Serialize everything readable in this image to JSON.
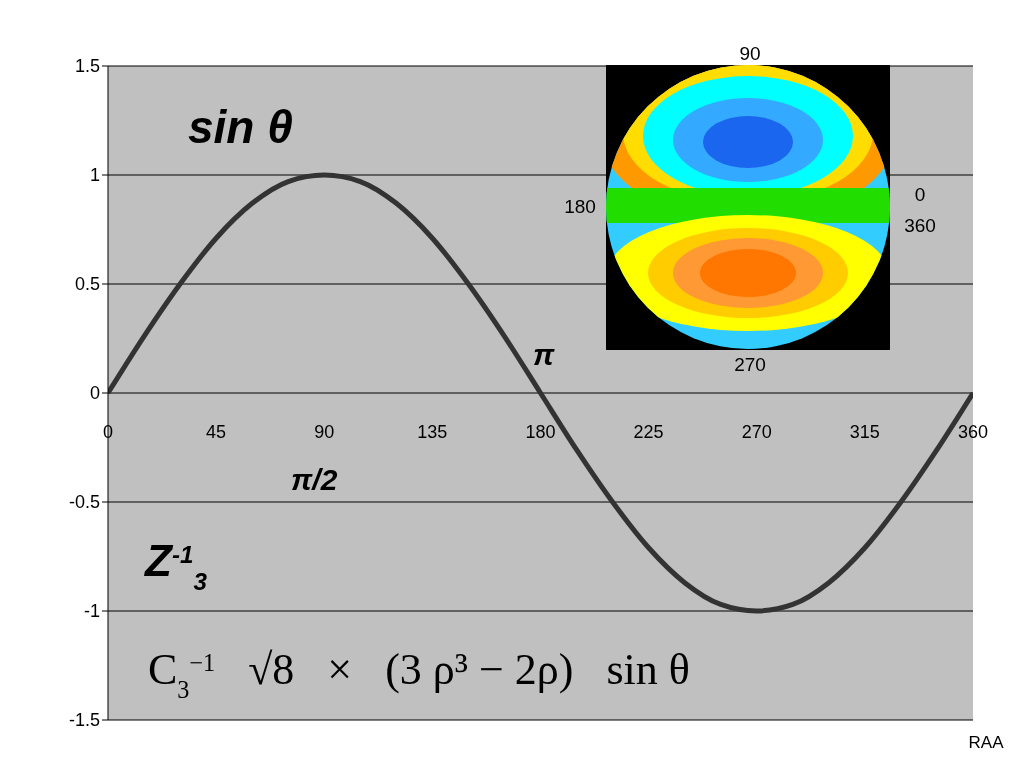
{
  "chart_data": {
    "type": "line",
    "x": [
      0,
      15,
      30,
      45,
      60,
      75,
      90,
      105,
      120,
      135,
      150,
      165,
      180,
      195,
      210,
      225,
      240,
      255,
      270,
      285,
      300,
      315,
      330,
      345,
      360
    ],
    "values": [
      0,
      0.26,
      0.5,
      0.71,
      0.87,
      0.97,
      1,
      0.97,
      0.87,
      0.71,
      0.5,
      0.26,
      0,
      -0.26,
      -0.5,
      -0.71,
      -0.87,
      -0.97,
      -1,
      -0.97,
      -0.87,
      -0.71,
      -0.5,
      -0.26,
      0
    ],
    "color": "#333333",
    "line_style": "solid",
    "marker": "none",
    "xlim": [
      0,
      360
    ],
    "xticks": [
      0,
      45,
      90,
      135,
      180,
      225,
      270,
      315,
      360
    ],
    "ylim": [
      -1.5,
      1.5
    ],
    "yticks": [
      -1.5,
      -1,
      -0.5,
      0,
      0.5,
      1,
      1.5
    ],
    "grid": "y",
    "annotations": [
      "sin θ",
      "π",
      "π/2",
      "Z$^{-1}$$_{3}$",
      "C$_{3}$$^{−1}$   √8   ×   (3 ρ³ − 2ρ)   sin θ",
      "90",
      "180",
      "0",
      "360",
      "270",
      "RAA"
    ]
  }
}
